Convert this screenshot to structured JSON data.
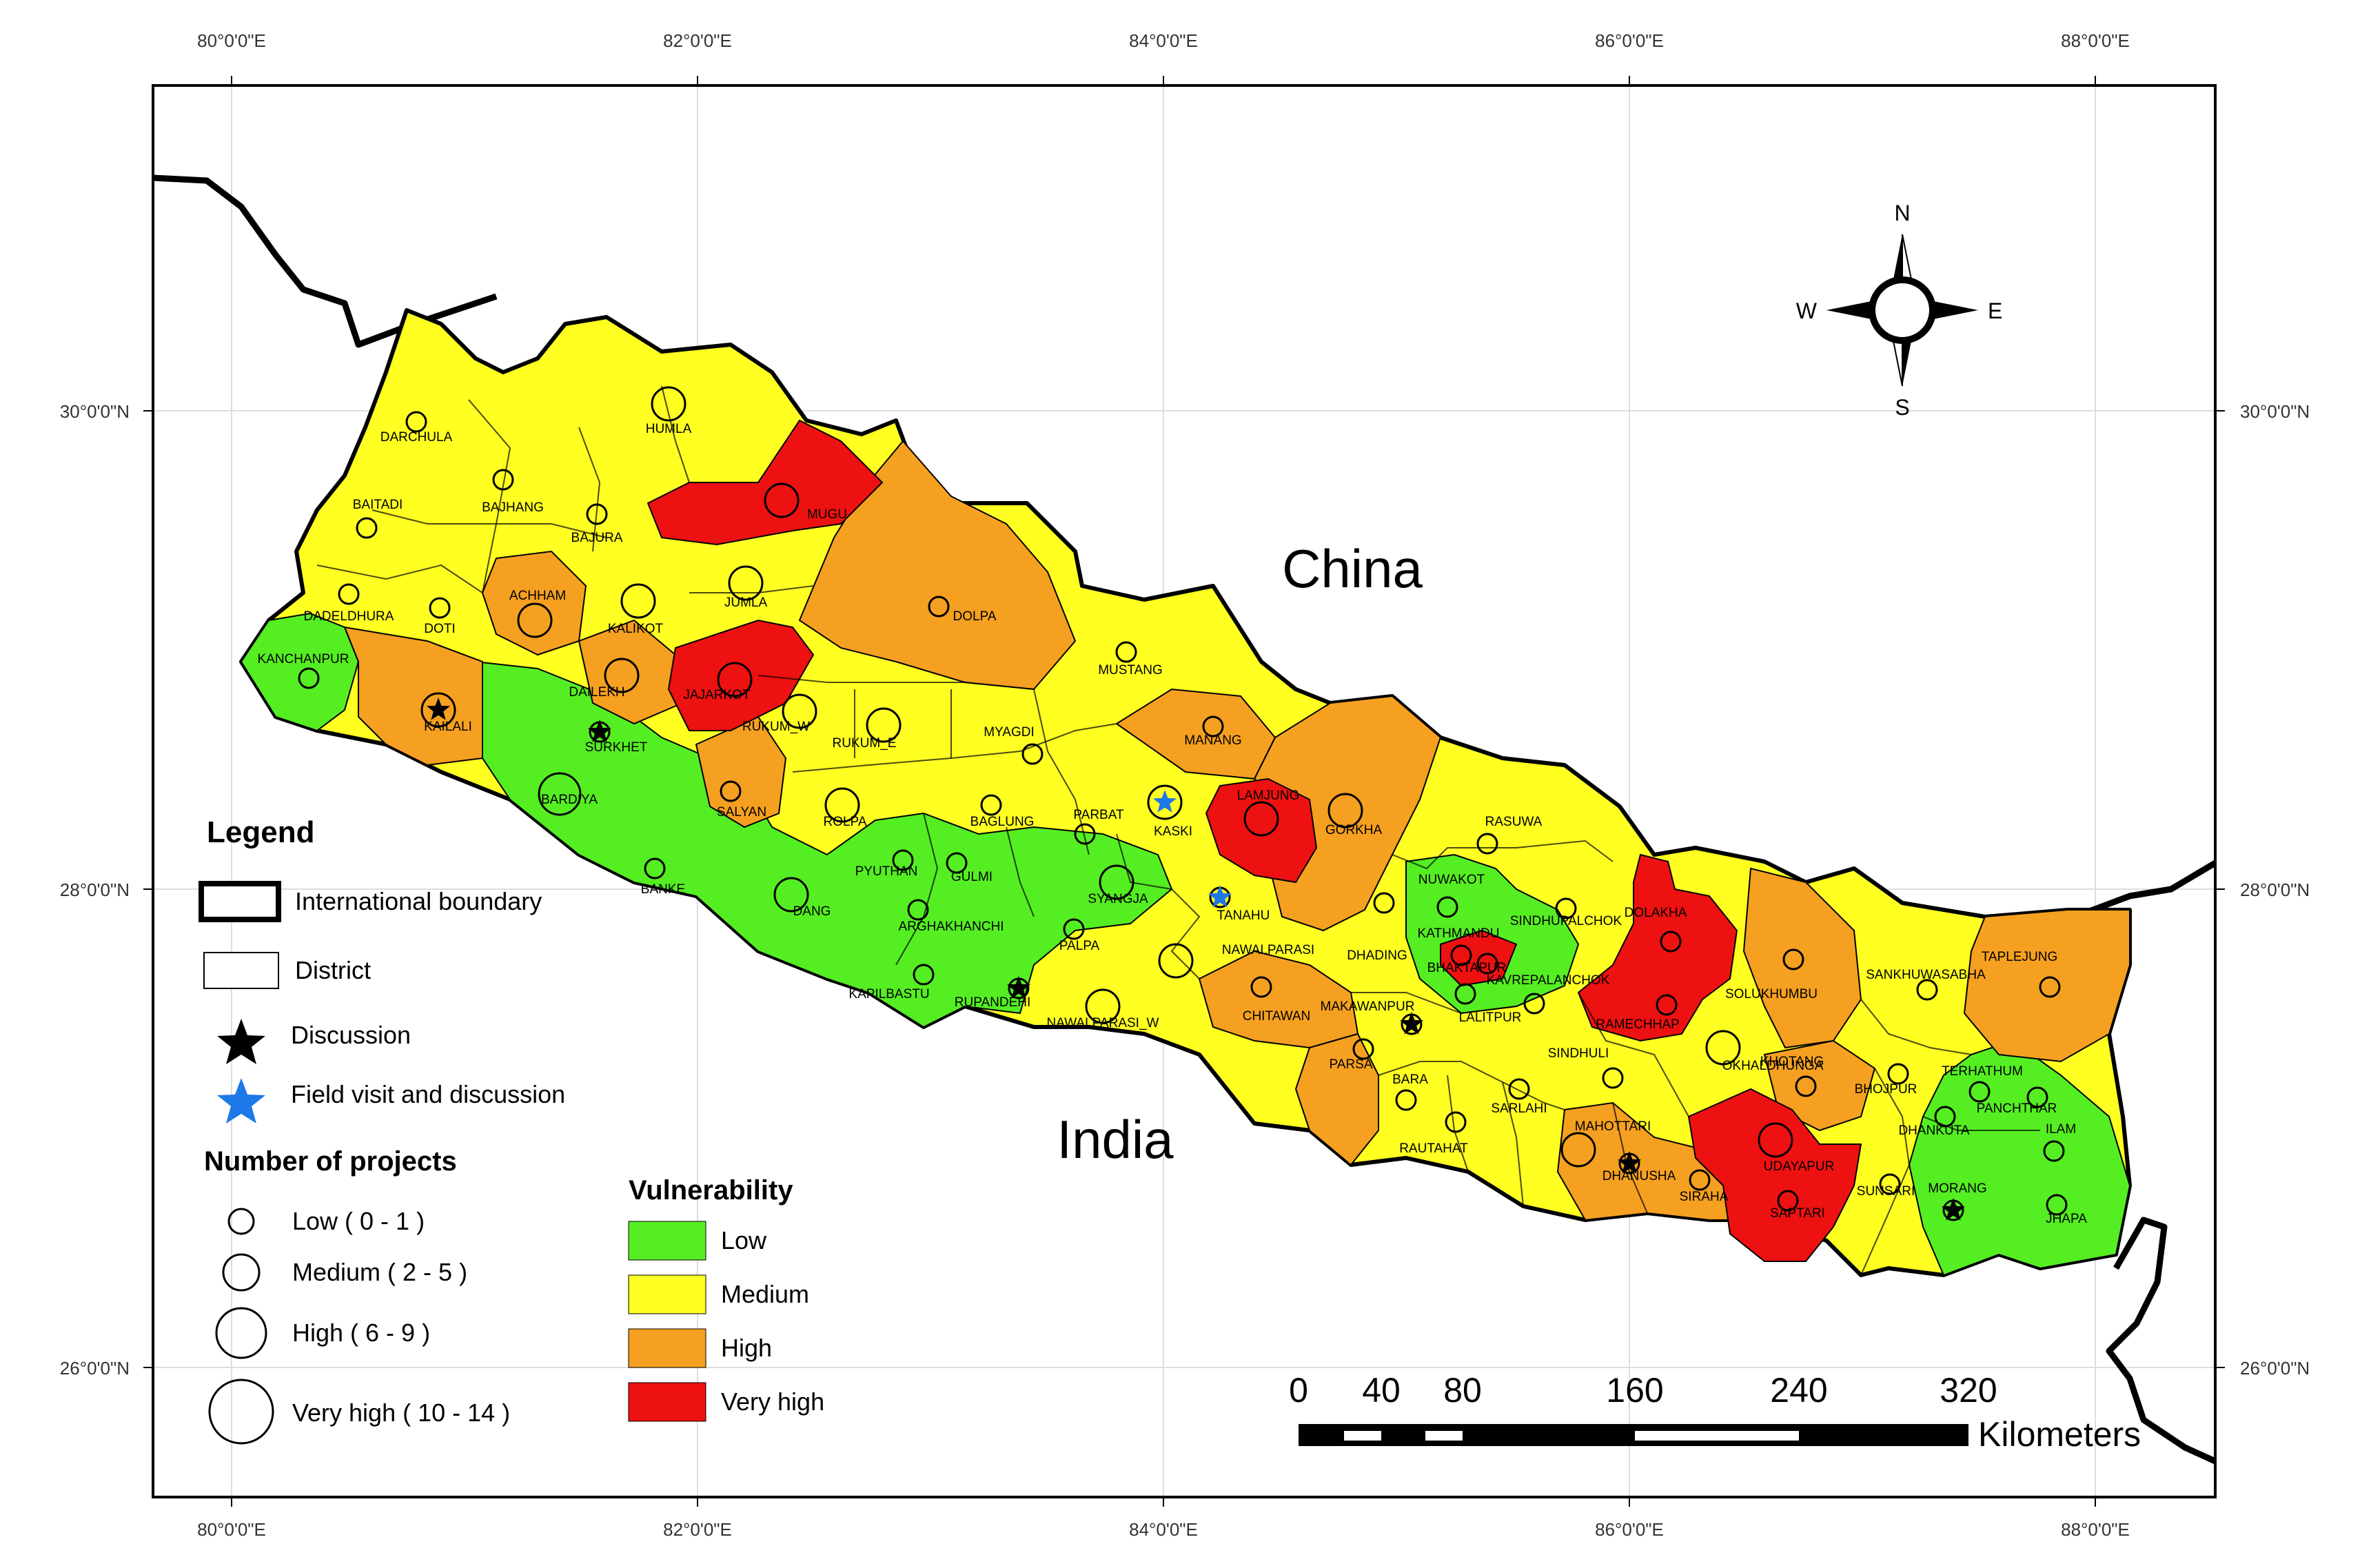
{
  "map": {
    "title": "",
    "colors": {
      "low": "#55ee22",
      "medium": "#ffff22",
      "high": "#f5a020",
      "very_high": "#ee1111"
    },
    "longitude_labels": [
      "80°0'0\"E",
      "82°0'0\"E",
      "84°0'0\"E",
      "86°0'0\"E",
      "88°0'0\"E"
    ],
    "latitude_labels": [
      "30°0'0\"N",
      "28°0'0\"N",
      "26°0'0\"N"
    ],
    "country_labels": {
      "north": "China",
      "south": "India"
    },
    "compass": {
      "north": "N",
      "south": "S",
      "east": "E",
      "west": "W"
    }
  },
  "districts": [
    {
      "name": "DARCHULA",
      "vulnerability": "medium",
      "projects": "low"
    },
    {
      "name": "HUMLA",
      "vulnerability": "medium",
      "projects": "medium"
    },
    {
      "name": "BAITADI",
      "vulnerability": "medium",
      "projects": "low"
    },
    {
      "name": "BAJHANG",
      "vulnerability": "medium",
      "projects": "low"
    },
    {
      "name": "BAJURA",
      "vulnerability": "medium",
      "projects": "low"
    },
    {
      "name": "MUGU",
      "vulnerability": "very_high",
      "projects": "medium"
    },
    {
      "name": "DADELDHURA",
      "vulnerability": "medium",
      "projects": "low"
    },
    {
      "name": "DOTI",
      "vulnerability": "medium",
      "projects": "low"
    },
    {
      "name": "ACHHAM",
      "vulnerability": "high",
      "projects": "medium"
    },
    {
      "name": "KALIKOT",
      "vulnerability": "medium",
      "projects": "medium"
    },
    {
      "name": "JUMLA",
      "vulnerability": "medium",
      "projects": "medium"
    },
    {
      "name": "DOLPA",
      "vulnerability": "high",
      "projects": "low"
    },
    {
      "name": "KANCHANPUR",
      "vulnerability": "low",
      "projects": "low"
    },
    {
      "name": "KAILALI",
      "vulnerability": "high",
      "projects": "medium"
    },
    {
      "name": "DAILEKH",
      "vulnerability": "high",
      "projects": "medium"
    },
    {
      "name": "JAJARKOT",
      "vulnerability": "very_high",
      "projects": "medium"
    },
    {
      "name": "MUSTANG",
      "vulnerability": "medium",
      "projects": "low"
    },
    {
      "name": "SURKHET",
      "vulnerability": "low",
      "projects": "low"
    },
    {
      "name": "RUKUM_W",
      "vulnerability": "medium",
      "projects": "medium"
    },
    {
      "name": "RUKUM_E",
      "vulnerability": "medium",
      "projects": "medium"
    },
    {
      "name": "MYAGDI",
      "vulnerability": "medium",
      "projects": "low"
    },
    {
      "name": "MANANG",
      "vulnerability": "high",
      "projects": "low"
    },
    {
      "name": "BARDIYA",
      "vulnerability": "low",
      "projects": "high"
    },
    {
      "name": "SALYAN",
      "vulnerability": "high",
      "projects": "low"
    },
    {
      "name": "ROLPA",
      "vulnerability": "medium",
      "projects": "medium"
    },
    {
      "name": "BAGLUNG",
      "vulnerability": "medium",
      "projects": "low"
    },
    {
      "name": "PARBAT",
      "vulnerability": "medium",
      "projects": "low"
    },
    {
      "name": "KASKI",
      "vulnerability": "medium",
      "projects": "medium"
    },
    {
      "name": "LAMJUNG",
      "vulnerability": "very_high",
      "projects": "medium"
    },
    {
      "name": "GORKHA",
      "vulnerability": "high",
      "projects": "medium"
    },
    {
      "name": "RASUWA",
      "vulnerability": "medium",
      "projects": "low"
    },
    {
      "name": "PYUTHAN",
      "vulnerability": "low",
      "projects": "low"
    },
    {
      "name": "GULMI",
      "vulnerability": "low",
      "projects": "low"
    },
    {
      "name": "SYANGJA",
      "vulnerability": "low",
      "projects": "medium"
    },
    {
      "name": "TANAHU",
      "vulnerability": "medium",
      "projects": "low"
    },
    {
      "name": "NUWAKOT",
      "vulnerability": "low",
      "projects": "low"
    },
    {
      "name": "BANKE",
      "vulnerability": "low",
      "projects": "low"
    },
    {
      "name": "DANG",
      "vulnerability": "low",
      "projects": "medium"
    },
    {
      "name": "ARGHAKHANCHI",
      "vulnerability": "low",
      "projects": "low"
    },
    {
      "name": "PALPA",
      "vulnerability": "low",
      "projects": "low"
    },
    {
      "name": "NAWALPARASI",
      "vulnerability": "medium",
      "projects": "medium"
    },
    {
      "name": "DHADING",
      "vulnerability": "high",
      "projects": "low"
    },
    {
      "name": "KATHMANDU",
      "vulnerability": "very_high",
      "projects": "low"
    },
    {
      "name": "SINDHUPALCHOK",
      "vulnerability": "medium",
      "projects": "low"
    },
    {
      "name": "DOLAKHA",
      "vulnerability": "very_high",
      "projects": "low"
    },
    {
      "name": "TAPLEJUNG",
      "vulnerability": "high",
      "projects": "low"
    },
    {
      "name": "SANKHUWASABHA",
      "vulnerability": "medium",
      "projects": "low"
    },
    {
      "name": "KAPILBASTU",
      "vulnerability": "low",
      "projects": "low"
    },
    {
      "name": "RUPANDEHI",
      "vulnerability": "low",
      "projects": "low"
    },
    {
      "name": "NAWALPARASI_W",
      "vulnerability": "medium",
      "projects": "medium"
    },
    {
      "name": "CHITAWAN",
      "vulnerability": "high",
      "projects": "low"
    },
    {
      "name": "MAKAWANPUR",
      "vulnerability": "medium",
      "projects": "low"
    },
    {
      "name": "BHAKTAPUR",
      "vulnerability": "very_high",
      "projects": "low"
    },
    {
      "name": "KAVREPALANCHOK",
      "vulnerability": "low",
      "projects": "low"
    },
    {
      "name": "LALITPUR",
      "vulnerability": "low",
      "projects": "low"
    },
    {
      "name": "RAMECHHAP",
      "vulnerability": "very_high",
      "projects": "low"
    },
    {
      "name": "SOLUKHUMBU",
      "vulnerability": "high",
      "projects": "low"
    },
    {
      "name": "PARSA",
      "vulnerability": "high",
      "projects": "low"
    },
    {
      "name": "SINDHULI",
      "vulnerability": "medium",
      "projects": "low"
    },
    {
      "name": "OKHALDHUNGA",
      "vulnerability": "medium",
      "projects": "medium"
    },
    {
      "name": "KHOTANG",
      "vulnerability": "high",
      "projects": "low"
    },
    {
      "name": "BHOJPUR",
      "vulnerability": "medium",
      "projects": "low"
    },
    {
      "name": "TERHATHUM",
      "vulnerability": "low",
      "projects": "low"
    },
    {
      "name": "PANCHTHAR",
      "vulnerability": "medium",
      "projects": "low"
    },
    {
      "name": "BARA",
      "vulnerability": "medium",
      "projects": "low"
    },
    {
      "name": "SARLAHI",
      "vulnerability": "medium",
      "projects": "low"
    },
    {
      "name": "RAUTAHAT",
      "vulnerability": "medium",
      "projects": "low"
    },
    {
      "name": "MAHOTTARI",
      "vulnerability": "high",
      "projects": "medium"
    },
    {
      "name": "DHANUSHA",
      "vulnerability": "high",
      "projects": "low"
    },
    {
      "name": "SIRAHA",
      "vulnerability": "high",
      "projects": "low"
    },
    {
      "name": "UDAYAPUR",
      "vulnerability": "very_high",
      "projects": "medium"
    },
    {
      "name": "SAPTARI",
      "vulnerability": "very_high",
      "projects": "low"
    },
    {
      "name": "DHANKUTA",
      "vulnerability": "low",
      "projects": "low"
    },
    {
      "name": "SUNSARI",
      "vulnerability": "medium",
      "projects": "low"
    },
    {
      "name": "MORANG",
      "vulnerability": "low",
      "projects": "low"
    },
    {
      "name": "ILAM",
      "vulnerability": "low",
      "projects": "low"
    },
    {
      "name": "JHAPA",
      "vulnerability": "low",
      "projects": "low"
    }
  ],
  "markers": {
    "discussion": [
      "KAILALI",
      "SURKHET",
      "RUPANDEHI",
      "MAKAWANPUR",
      "DHANUSHA",
      "MORANG"
    ],
    "field_visit_and_discussion": [
      "KASKI",
      "TANAHU"
    ]
  },
  "legend": {
    "title": "Legend",
    "international_boundary": "International boundary",
    "district": "District",
    "discussion": "Discussion",
    "field_visit": "Field visit and discussion",
    "projects_title": "Number of projects",
    "projects": [
      "Low ( 0 - 1 )",
      "Medium ( 2 - 5 )",
      "High ( 6 - 9 )",
      "Very high ( 10 - 14 )"
    ],
    "vulnerability_title": "Vulnerability",
    "vulnerability": [
      "Low",
      "Medium",
      "High",
      "Very high"
    ]
  },
  "scale_bar": {
    "ticks": [
      "0",
      "40",
      "80",
      "160",
      "240",
      "320"
    ],
    "unit": "Kilometers"
  }
}
